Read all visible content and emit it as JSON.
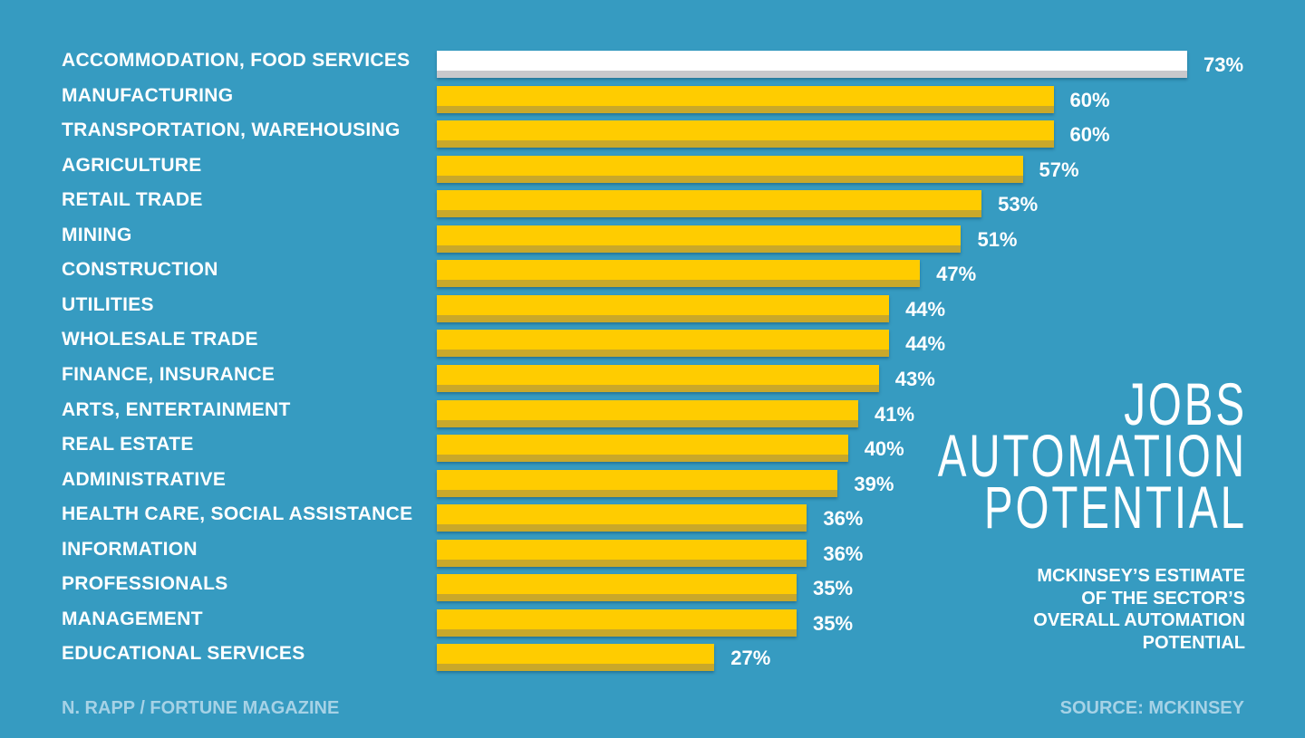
{
  "chart_data": {
    "type": "bar",
    "orientation": "horizontal",
    "title": "JOBS AUTOMATION POTENTIAL",
    "title_lines": [
      "JOBS",
      "AUTOMATION",
      "POTENTIAL"
    ],
    "subtitle": "MCKINSEY'S ESTIMATE OF THE SECTOR'S OVERALL AUTOMATION POTENTIAL",
    "subtitle_lines": [
      "MCKINSEY’S ESTIMATE",
      "OF THE SECTOR’S",
      "OVERALL AUTOMATION",
      "POTENTIAL"
    ],
    "categories": [
      "ACCOMMODATION, FOOD SERVICES",
      "MANUFACTURING",
      "TRANSPORTATION, WAREHOUSING",
      "AGRICULTURE",
      "RETAIL TRADE",
      "MINING",
      "CONSTRUCTION",
      "UTILITIES",
      "WHOLESALE TRADE",
      "FINANCE, INSURANCE",
      "ARTS, ENTERTAINMENT",
      "REAL ESTATE",
      "ADMINISTRATIVE",
      "HEALTH CARE, SOCIAL ASSISTANCE",
      "INFORMATION",
      "PROFESSIONALS",
      "MANAGEMENT",
      "EDUCATIONAL SERVICES"
    ],
    "values": [
      73,
      60,
      60,
      57,
      53,
      51,
      47,
      44,
      44,
      43,
      41,
      40,
      39,
      36,
      36,
      35,
      35,
      27
    ],
    "value_labels": [
      "73%",
      "60%",
      "60%",
      "57%",
      "53%",
      "51%",
      "47%",
      "44%",
      "44%",
      "43%",
      "41%",
      "40%",
      "39%",
      "36%",
      "36%",
      "35%",
      "35%",
      "27%"
    ],
    "unit": "%",
    "xlim": [
      0,
      73
    ],
    "grid": false,
    "highlight_index": 0
  },
  "colors": {
    "background": "#369bc1",
    "bar": "#ffcc00",
    "bar_shade": "#c9a82a",
    "highlight_bar": "#ffffff",
    "highlight_shade": "#c8c8cc",
    "footer_text": "#a6d2e6"
  },
  "footer": {
    "credit": "N. RAPP / FORTUNE MAGAZINE",
    "source": "SOURCE: MCKINSEY"
  }
}
